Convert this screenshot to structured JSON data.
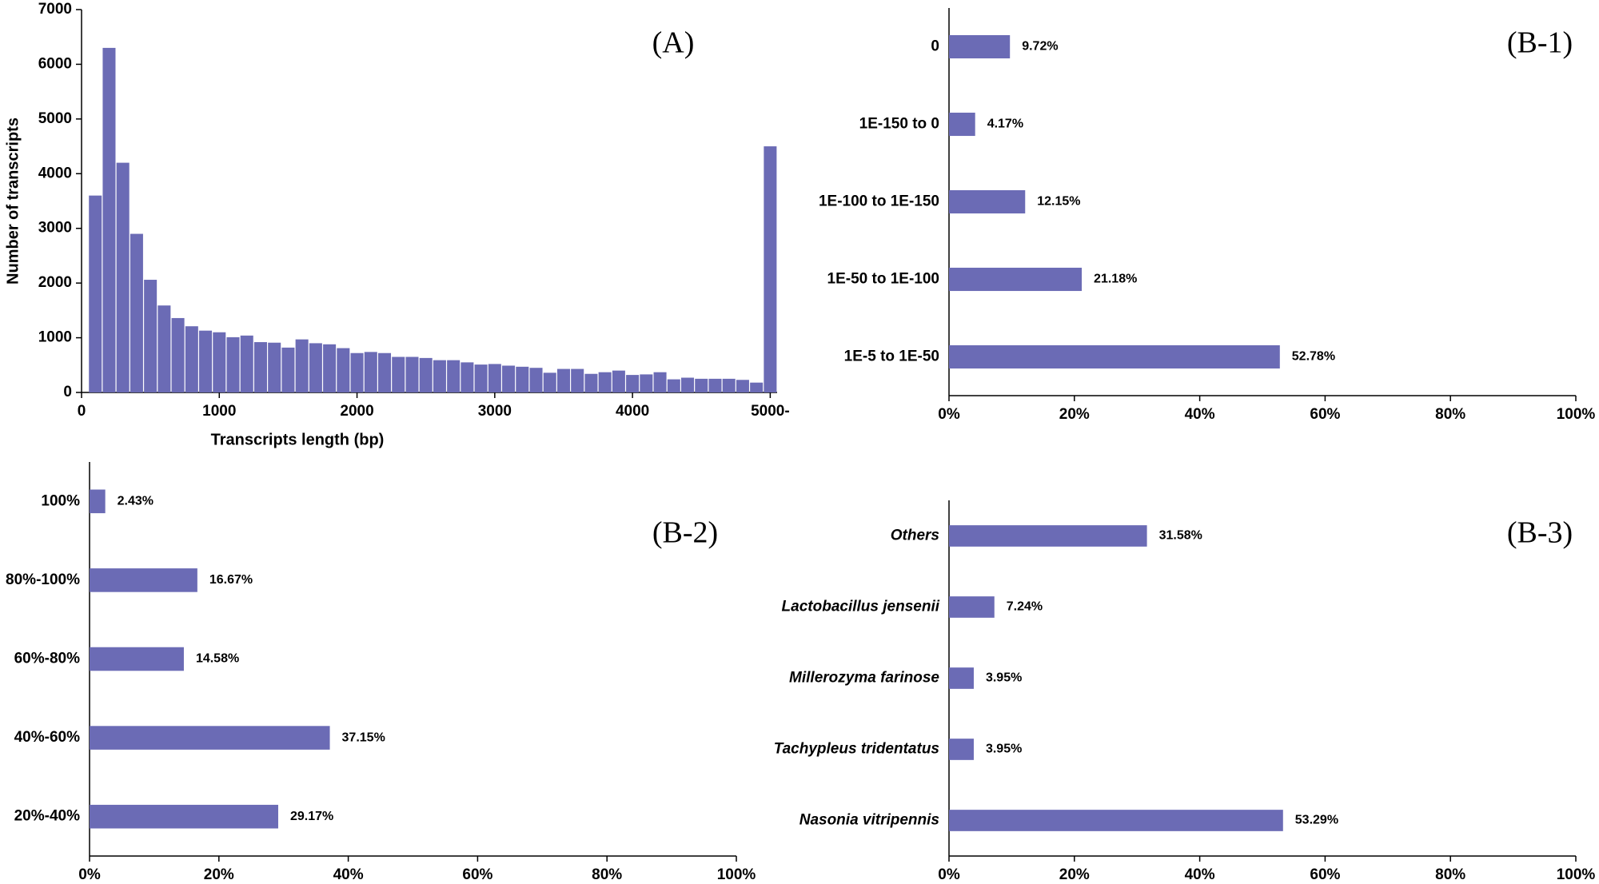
{
  "chart_data": [
    {
      "type": "histogram",
      "annotation": "(A)",
      "x_label": "Transcripts length (bp)",
      "y_label": "Number of transcripts",
      "color": "#6b6bb5",
      "bins": [
        50,
        150,
        250,
        350,
        450,
        550,
        650,
        750,
        850,
        950,
        1050,
        1150,
        1250,
        1350,
        1450,
        1550,
        1650,
        1750,
        1850,
        1950,
        2050,
        2150,
        2250,
        2350,
        2450,
        2550,
        2650,
        2750,
        2850,
        2950,
        3050,
        3150,
        3250,
        3350,
        3450,
        3550,
        3650,
        3750,
        3850,
        3950,
        4050,
        4150,
        4250,
        4350,
        4450,
        4550,
        4650,
        4750,
        4850,
        4950,
        5050
      ],
      "values": [
        3600,
        6300,
        4200,
        2900,
        2060,
        1590,
        1360,
        1210,
        1130,
        1100,
        1010,
        1040,
        920,
        910,
        820,
        970,
        900,
        880,
        810,
        720,
        740,
        720,
        650,
        650,
        630,
        590,
        590,
        550,
        510,
        520,
        490,
        470,
        450,
        360,
        430,
        430,
        340,
        370,
        400,
        320,
        330,
        370,
        240,
        270,
        250,
        250,
        250,
        230,
        180,
        4500
      ],
      "xlim": [
        0,
        5050
      ],
      "xticks": [
        0,
        1000,
        2000,
        3000,
        4000,
        {
          "value": 5000,
          "label": "5000-"
        }
      ],
      "ylim": [
        0,
        7000
      ],
      "yticks": [
        0,
        1000,
        2000,
        3000,
        4000,
        5000,
        6000,
        7000
      ]
    },
    {
      "type": "hbar",
      "annotation": "(B-1)",
      "color": "#6b6bb5",
      "categories": [
        "0",
        "1E-150 to 0",
        "1E-100 to 1E-150",
        "1E-50 to 1E-100",
        "1E-5 to 1E-50"
      ],
      "values": [
        9.72,
        4.17,
        12.15,
        21.18,
        52.78
      ],
      "value_labels": [
        "9.72%",
        "4.17%",
        "12.15%",
        "21.18%",
        "52.78%"
      ],
      "xlim": [
        0,
        100
      ],
      "xticks": [
        {
          "value": 0,
          "label": "0%"
        },
        {
          "value": 20,
          "label": "20%"
        },
        {
          "value": 40,
          "label": "40%"
        },
        {
          "value": 60,
          "label": "60%"
        },
        {
          "value": 80,
          "label": "80%"
        },
        {
          "value": 100,
          "label": "100%"
        }
      ]
    },
    {
      "type": "hbar",
      "annotation": "(B-2)",
      "color": "#6b6bb5",
      "categories": [
        "100%",
        "80%-100%",
        "60%-80%",
        "40%-60%",
        "20%-40%"
      ],
      "values": [
        2.43,
        16.67,
        14.58,
        37.15,
        29.17
      ],
      "value_labels": [
        "2.43%",
        "16.67%",
        "14.58%",
        "37.15%",
        "29.17%"
      ],
      "xlim": [
        0,
        100
      ],
      "xticks": [
        {
          "value": 0,
          "label": "0%"
        },
        {
          "value": 20,
          "label": "20%"
        },
        {
          "value": 40,
          "label": "40%"
        },
        {
          "value": 60,
          "label": "60%"
        },
        {
          "value": 80,
          "label": "80%"
        },
        {
          "value": 100,
          "label": "100%"
        }
      ]
    },
    {
      "type": "hbar",
      "annotation": "(B-3)",
      "color": "#6b6bb5",
      "categories": [
        "Others",
        "Lactobacillus jensenii",
        "Millerozyma farinose",
        "Tachypleus tridentatus",
        "Nasonia vitripennis"
      ],
      "values": [
        31.58,
        7.24,
        3.95,
        3.95,
        53.29
      ],
      "value_labels": [
        "31.58%",
        "7.24%",
        "3.95%",
        "3.95%",
        "53.29%"
      ],
      "xlim": [
        0,
        100
      ],
      "xticks": [
        {
          "value": 0,
          "label": "0%"
        },
        {
          "value": 20,
          "label": "20%"
        },
        {
          "value": 40,
          "label": "40%"
        },
        {
          "value": 60,
          "label": "60%"
        },
        {
          "value": 80,
          "label": "80%"
        },
        {
          "value": 100,
          "label": "100%"
        }
      ]
    }
  ]
}
